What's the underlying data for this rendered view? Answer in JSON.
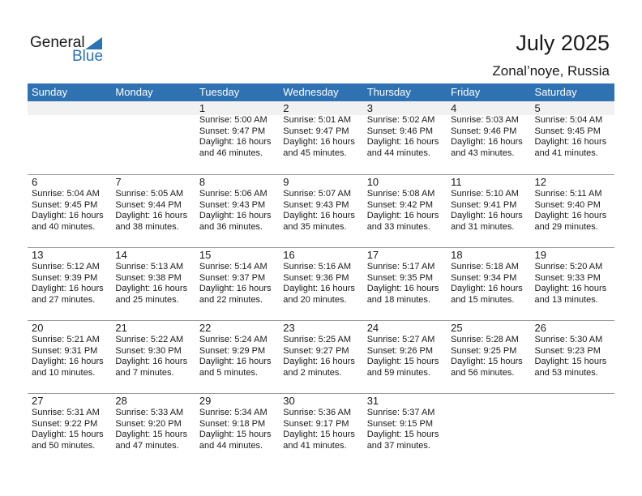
{
  "logo": {
    "general": "General",
    "blue": "Blue"
  },
  "header": {
    "title": "July 2025",
    "location": "Zonal’noye, Russia"
  },
  "weekdays": [
    "Sunday",
    "Monday",
    "Tuesday",
    "Wednesday",
    "Thursday",
    "Friday",
    "Saturday"
  ],
  "colors": {
    "header_bg": "#2f72b2",
    "brand_blue": "#2b73b6"
  },
  "weeks": [
    [
      null,
      null,
      {
        "day": "1",
        "sunrise": "Sunrise: 5:00 AM",
        "sunset": "Sunset: 9:47 PM",
        "daylight": "Daylight: 16 hours",
        "daylight2": "and 46 minutes."
      },
      {
        "day": "2",
        "sunrise": "Sunrise: 5:01 AM",
        "sunset": "Sunset: 9:47 PM",
        "daylight": "Daylight: 16 hours",
        "daylight2": "and 45 minutes."
      },
      {
        "day": "3",
        "sunrise": "Sunrise: 5:02 AM",
        "sunset": "Sunset: 9:46 PM",
        "daylight": "Daylight: 16 hours",
        "daylight2": "and 44 minutes."
      },
      {
        "day": "4",
        "sunrise": "Sunrise: 5:03 AM",
        "sunset": "Sunset: 9:46 PM",
        "daylight": "Daylight: 16 hours",
        "daylight2": "and 43 minutes."
      },
      {
        "day": "5",
        "sunrise": "Sunrise: 5:04 AM",
        "sunset": "Sunset: 9:45 PM",
        "daylight": "Daylight: 16 hours",
        "daylight2": "and 41 minutes."
      }
    ],
    [
      {
        "day": "6",
        "sunrise": "Sunrise: 5:04 AM",
        "sunset": "Sunset: 9:45 PM",
        "daylight": "Daylight: 16 hours",
        "daylight2": "and 40 minutes."
      },
      {
        "day": "7",
        "sunrise": "Sunrise: 5:05 AM",
        "sunset": "Sunset: 9:44 PM",
        "daylight": "Daylight: 16 hours",
        "daylight2": "and 38 minutes."
      },
      {
        "day": "8",
        "sunrise": "Sunrise: 5:06 AM",
        "sunset": "Sunset: 9:43 PM",
        "daylight": "Daylight: 16 hours",
        "daylight2": "and 36 minutes."
      },
      {
        "day": "9",
        "sunrise": "Sunrise: 5:07 AM",
        "sunset": "Sunset: 9:43 PM",
        "daylight": "Daylight: 16 hours",
        "daylight2": "and 35 minutes."
      },
      {
        "day": "10",
        "sunrise": "Sunrise: 5:08 AM",
        "sunset": "Sunset: 9:42 PM",
        "daylight": "Daylight: 16 hours",
        "daylight2": "and 33 minutes."
      },
      {
        "day": "11",
        "sunrise": "Sunrise: 5:10 AM",
        "sunset": "Sunset: 9:41 PM",
        "daylight": "Daylight: 16 hours",
        "daylight2": "and 31 minutes."
      },
      {
        "day": "12",
        "sunrise": "Sunrise: 5:11 AM",
        "sunset": "Sunset: 9:40 PM",
        "daylight": "Daylight: 16 hours",
        "daylight2": "and 29 minutes."
      }
    ],
    [
      {
        "day": "13",
        "sunrise": "Sunrise: 5:12 AM",
        "sunset": "Sunset: 9:39 PM",
        "daylight": "Daylight: 16 hours",
        "daylight2": "and 27 minutes."
      },
      {
        "day": "14",
        "sunrise": "Sunrise: 5:13 AM",
        "sunset": "Sunset: 9:38 PM",
        "daylight": "Daylight: 16 hours",
        "daylight2": "and 25 minutes."
      },
      {
        "day": "15",
        "sunrise": "Sunrise: 5:14 AM",
        "sunset": "Sunset: 9:37 PM",
        "daylight": "Daylight: 16 hours",
        "daylight2": "and 22 minutes."
      },
      {
        "day": "16",
        "sunrise": "Sunrise: 5:16 AM",
        "sunset": "Sunset: 9:36 PM",
        "daylight": "Daylight: 16 hours",
        "daylight2": "and 20 minutes."
      },
      {
        "day": "17",
        "sunrise": "Sunrise: 5:17 AM",
        "sunset": "Sunset: 9:35 PM",
        "daylight": "Daylight: 16 hours",
        "daylight2": "and 18 minutes."
      },
      {
        "day": "18",
        "sunrise": "Sunrise: 5:18 AM",
        "sunset": "Sunset: 9:34 PM",
        "daylight": "Daylight: 16 hours",
        "daylight2": "and 15 minutes."
      },
      {
        "day": "19",
        "sunrise": "Sunrise: 5:20 AM",
        "sunset": "Sunset: 9:33 PM",
        "daylight": "Daylight: 16 hours",
        "daylight2": "and 13 minutes."
      }
    ],
    [
      {
        "day": "20",
        "sunrise": "Sunrise: 5:21 AM",
        "sunset": "Sunset: 9:31 PM",
        "daylight": "Daylight: 16 hours",
        "daylight2": "and 10 minutes."
      },
      {
        "day": "21",
        "sunrise": "Sunrise: 5:22 AM",
        "sunset": "Sunset: 9:30 PM",
        "daylight": "Daylight: 16 hours",
        "daylight2": "and 7 minutes."
      },
      {
        "day": "22",
        "sunrise": "Sunrise: 5:24 AM",
        "sunset": "Sunset: 9:29 PM",
        "daylight": "Daylight: 16 hours",
        "daylight2": "and 5 minutes."
      },
      {
        "day": "23",
        "sunrise": "Sunrise: 5:25 AM",
        "sunset": "Sunset: 9:27 PM",
        "daylight": "Daylight: 16 hours",
        "daylight2": "and 2 minutes."
      },
      {
        "day": "24",
        "sunrise": "Sunrise: 5:27 AM",
        "sunset": "Sunset: 9:26 PM",
        "daylight": "Daylight: 15 hours",
        "daylight2": "and 59 minutes."
      },
      {
        "day": "25",
        "sunrise": "Sunrise: 5:28 AM",
        "sunset": "Sunset: 9:25 PM",
        "daylight": "Daylight: 15 hours",
        "daylight2": "and 56 minutes."
      },
      {
        "day": "26",
        "sunrise": "Sunrise: 5:30 AM",
        "sunset": "Sunset: 9:23 PM",
        "daylight": "Daylight: 15 hours",
        "daylight2": "and 53 minutes."
      }
    ],
    [
      {
        "day": "27",
        "sunrise": "Sunrise: 5:31 AM",
        "sunset": "Sunset: 9:22 PM",
        "daylight": "Daylight: 15 hours",
        "daylight2": "and 50 minutes."
      },
      {
        "day": "28",
        "sunrise": "Sunrise: 5:33 AM",
        "sunset": "Sunset: 9:20 PM",
        "daylight": "Daylight: 15 hours",
        "daylight2": "and 47 minutes."
      },
      {
        "day": "29",
        "sunrise": "Sunrise: 5:34 AM",
        "sunset": "Sunset: 9:18 PM",
        "daylight": "Daylight: 15 hours",
        "daylight2": "and 44 minutes."
      },
      {
        "day": "30",
        "sunrise": "Sunrise: 5:36 AM",
        "sunset": "Sunset: 9:17 PM",
        "daylight": "Daylight: 15 hours",
        "daylight2": "and 41 minutes."
      },
      {
        "day": "31",
        "sunrise": "Sunrise: 5:37 AM",
        "sunset": "Sunset: 9:15 PM",
        "daylight": "Daylight: 15 hours",
        "daylight2": "and 37 minutes."
      },
      null,
      null
    ]
  ]
}
